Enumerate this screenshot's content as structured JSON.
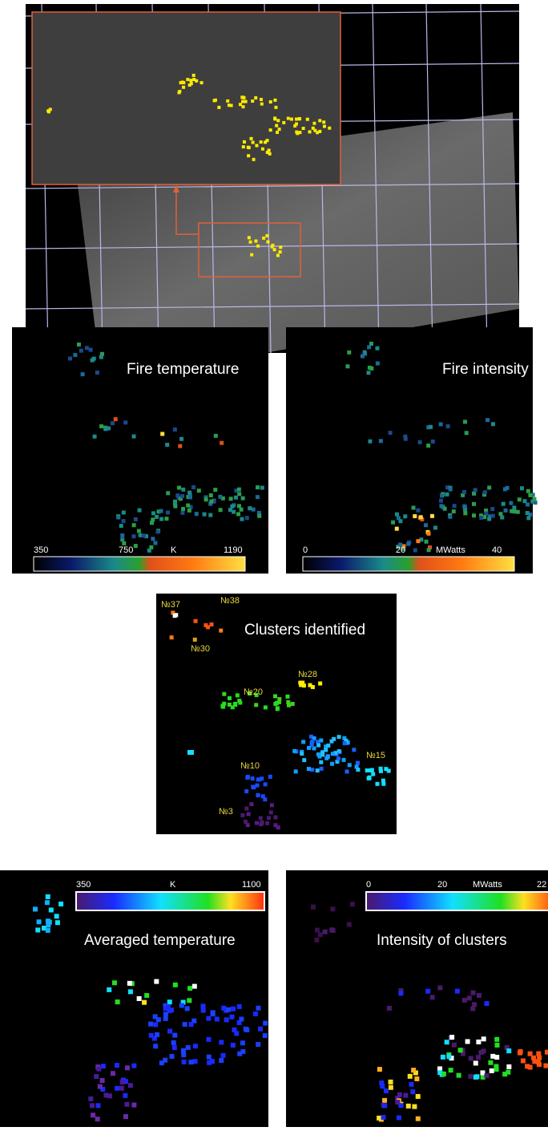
{
  "fire_temperature": {
    "title": "Fire temperature",
    "scale": [
      "350",
      "750",
      "K",
      "1190"
    ]
  },
  "fire_intensity": {
    "title": "Fire intensity",
    "scale": [
      "0",
      "20",
      "MWatts",
      "40"
    ]
  },
  "clusters": {
    "title": "Clusters identified",
    "labels": [
      "№37",
      "№38",
      "№30",
      "№28",
      "№20",
      "№10",
      "№15",
      "№3"
    ]
  },
  "averaged_temperature": {
    "title": "Averaged temperature",
    "scale": [
      "350",
      "K",
      "1100"
    ]
  },
  "cluster_intensity": {
    "title": "Intensity of clusters",
    "scale": [
      "0",
      "20",
      "MWatts",
      "22"
    ]
  }
}
